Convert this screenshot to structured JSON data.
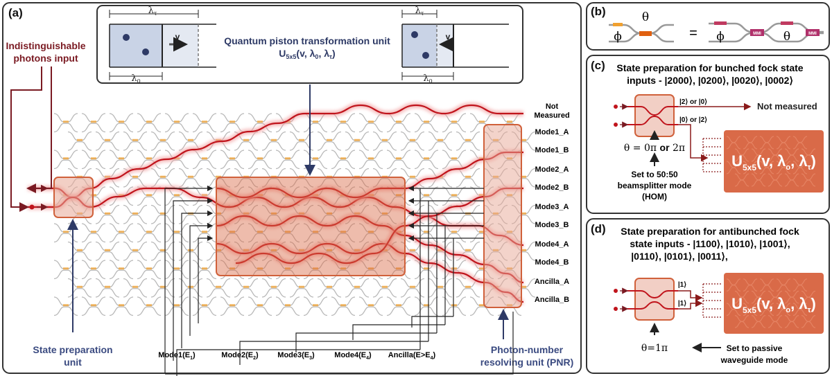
{
  "panels": {
    "a": "(a)",
    "b": "(b)",
    "c": "(c)",
    "d": "(d)"
  },
  "panel_a": {
    "input_label_line1": "Indistinguishable",
    "input_label_line2": "photons input",
    "piston": {
      "title": "Quantum piston transformation unit",
      "formula": "U5x5(v, λ0, λτ)",
      "lambda_tau": "λτ",
      "lambda_0": "λ0",
      "v": "v"
    },
    "state_prep_line1": "State preparation",
    "state_prep_line2": "unit",
    "pnr_line1": "Photon-number",
    "pnr_line2": "resolving unit (PNR)",
    "outputs": [
      "Not",
      "Measured",
      "Mode1_A",
      "Mode1_B",
      "Mode2_A",
      "Mode2_B",
      "Mode3_A",
      "Mode3_B",
      "Mode4_A",
      "Mode4_B",
      "Ancilla_A",
      "Ancilla_B"
    ],
    "bottom_labels": [
      "Mode1(E1)",
      "Mode2(E2)",
      "Mode3(E3)",
      "Mode4(E4)",
      "Ancilla(E>E4)"
    ]
  },
  "panel_b": {
    "phi": "ϕ",
    "theta": "θ",
    "equals": "=",
    "mmi": "MMI"
  },
  "panel_c": {
    "title_line1": "State preparation for bunched fock state",
    "title_line2": "inputs - |2000⟩,  |0200⟩, |0020⟩, |0002⟩",
    "out_top": "|2⟩ or |0⟩",
    "out_bottom": "|0⟩ or |2⟩",
    "not_measured": "Not measured",
    "theta_eq": "θ = 0π or 2π",
    "note_line1": "Set to 50:50",
    "note_line2": "beamsplitter mode",
    "note_line3": "(HOM)",
    "unit_label": "U5x5(v, λo, λτ)"
  },
  "panel_d": {
    "title_line1": "State preparation for antibunched fock",
    "title_line2": "state inputs - |1100⟩, |1010⟩, |1001⟩,",
    "title_line3": "|0110⟩, |0101⟩, |0011⟩,",
    "out_top": "|1⟩",
    "out_bottom": "|1⟩",
    "theta_eq": "θ=1π",
    "note_line1": "Set to passive",
    "note_line2": "waveguide mode",
    "unit_label": "U5x5(v, λo, λτ)"
  },
  "colors": {
    "path_red": "#c0141c",
    "glow": "#f2a3a3",
    "box_fill": "#e8a795",
    "box_stroke": "#d0603a",
    "unit_fill": "#d96a48",
    "navy": "#2e3a66",
    "maroon": "#7a1a22",
    "waveguide": "#b8b8b8",
    "phase_orange": "#f0a030"
  }
}
